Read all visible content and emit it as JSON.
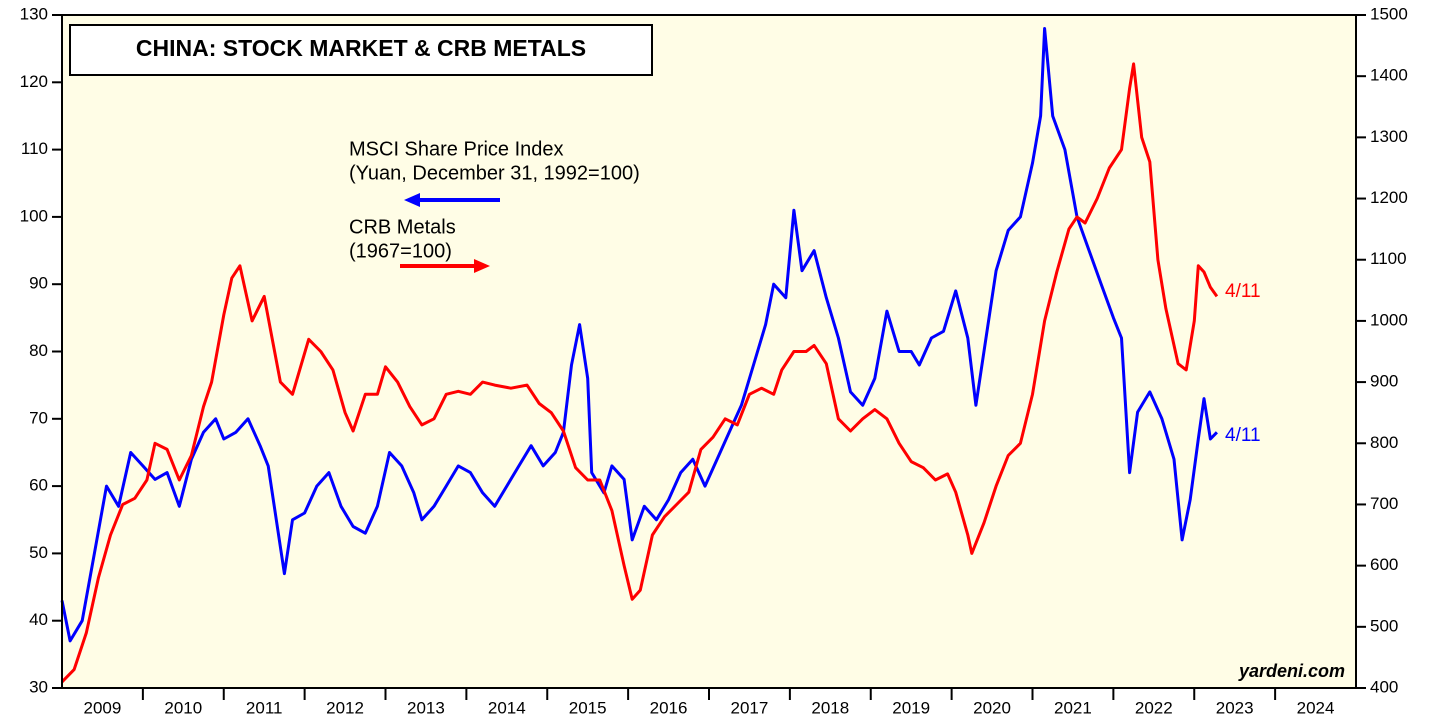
{
  "chart_data": {
    "type": "line",
    "title": "CHINA: STOCK MARKET & CRB METALS",
    "annotations": {
      "msci_line1": "MSCI Share Price Index",
      "msci_line2": "(Yuan, December 31, 1992=100)",
      "crb_line1": "CRB Metals",
      "crb_line2": "(1967=100)",
      "red_end": "4/11",
      "blue_end": "4/11",
      "source": "yardeni.com"
    },
    "xlim": [
      2009,
      2025
    ],
    "xtick_marks": [
      2010,
      2011,
      2012,
      2013,
      2014,
      2015,
      2016,
      2017,
      2018,
      2019,
      2020,
      2021,
      2022,
      2023,
      2024
    ],
    "xticks": [
      {
        "value": 2009.5,
        "label": "2009"
      },
      {
        "value": 2010.5,
        "label": "2010"
      },
      {
        "value": 2011.5,
        "label": "2011"
      },
      {
        "value": 2012.5,
        "label": "2012"
      },
      {
        "value": 2013.5,
        "label": "2013"
      },
      {
        "value": 2014.5,
        "label": "2014"
      },
      {
        "value": 2015.5,
        "label": "2015"
      },
      {
        "value": 2016.5,
        "label": "2016"
      },
      {
        "value": 2017.5,
        "label": "2017"
      },
      {
        "value": 2018.5,
        "label": "2018"
      },
      {
        "value": 2019.5,
        "label": "2019"
      },
      {
        "value": 2020.5,
        "label": "2020"
      },
      {
        "value": 2021.5,
        "label": "2021"
      },
      {
        "value": 2022.5,
        "label": "2022"
      },
      {
        "value": 2023.5,
        "label": "2023"
      },
      {
        "value": 2024.5,
        "label": "2024"
      }
    ],
    "ylim": [
      30,
      130
    ],
    "yticks": [
      30,
      40,
      50,
      60,
      70,
      80,
      90,
      100,
      110,
      120,
      130
    ],
    "y2lim": [
      400,
      1500
    ],
    "y2ticks": [
      400,
      500,
      600,
      700,
      800,
      900,
      1000,
      1100,
      1200,
      1300,
      1400,
      1500
    ],
    "background": "#fffde6",
    "series": [
      {
        "name": "MSCI Share Price Index",
        "color": "#0000ff",
        "axis": "y",
        "x": [
          2009.0,
          2009.1,
          2009.25,
          2009.4,
          2009.55,
          2009.7,
          2009.85,
          2010.0,
          2010.15,
          2010.3,
          2010.45,
          2010.6,
          2010.75,
          2010.9,
          2011.0,
          2011.15,
          2011.3,
          2011.45,
          2011.55,
          2011.65,
          2011.75,
          2011.85,
          2012.0,
          2012.15,
          2012.3,
          2012.45,
          2012.6,
          2012.75,
          2012.9,
          2013.05,
          2013.2,
          2013.35,
          2013.45,
          2013.6,
          2013.75,
          2013.9,
          2014.05,
          2014.2,
          2014.35,
          2014.5,
          2014.65,
          2014.8,
          2014.95,
          2015.1,
          2015.2,
          2015.3,
          2015.4,
          2015.5,
          2015.55,
          2015.7,
          2015.8,
          2015.95,
          2016.05,
          2016.2,
          2016.35,
          2016.5,
          2016.65,
          2016.8,
          2016.95,
          2017.1,
          2017.25,
          2017.4,
          2017.55,
          2017.7,
          2017.8,
          2017.95,
          2018.05,
          2018.15,
          2018.3,
          2018.45,
          2018.6,
          2018.75,
          2018.9,
          2019.05,
          2019.2,
          2019.35,
          2019.5,
          2019.6,
          2019.75,
          2019.9,
          2020.05,
          2020.2,
          2020.3,
          2020.45,
          2020.55,
          2020.7,
          2020.85,
          2021.0,
          2021.1,
          2021.15,
          2021.25,
          2021.4,
          2021.55,
          2021.7,
          2021.85,
          2022.0,
          2022.1,
          2022.2,
          2022.3,
          2022.45,
          2022.6,
          2022.75,
          2022.85,
          2022.95,
          2023.05,
          2023.12,
          2023.2,
          2023.28
        ],
        "values": [
          43,
          37,
          40,
          50,
          60,
          57,
          65,
          63,
          61,
          62,
          57,
          64,
          68,
          70,
          67,
          68,
          70,
          66,
          63,
          55,
          47,
          55,
          56,
          60,
          62,
          57,
          54,
          53,
          57,
          65,
          63,
          59,
          55,
          57,
          60,
          63,
          62,
          59,
          57,
          60,
          63,
          66,
          63,
          65,
          68,
          78,
          84,
          76,
          62,
          59,
          63,
          61,
          52,
          57,
          55,
          58,
          62,
          64,
          60,
          64,
          68,
          72,
          78,
          84,
          90,
          88,
          101,
          92,
          95,
          88,
          82,
          74,
          72,
          76,
          86,
          80,
          80,
          78,
          82,
          83,
          89,
          82,
          72,
          84,
          92,
          98,
          100,
          108,
          115,
          128,
          115,
          110,
          100,
          95,
          90,
          85,
          82,
          62,
          71,
          74,
          70,
          64,
          52,
          58,
          67,
          73,
          67,
          68
        ]
      },
      {
        "name": "CRB Metals",
        "color": "#ff0000",
        "axis": "y2",
        "x": [
          2009.0,
          2009.15,
          2009.3,
          2009.45,
          2009.6,
          2009.75,
          2009.9,
          2010.05,
          2010.15,
          2010.3,
          2010.45,
          2010.6,
          2010.75,
          2010.85,
          2011.0,
          2011.1,
          2011.2,
          2011.35,
          2011.5,
          2011.6,
          2011.7,
          2011.85,
          2012.05,
          2012.2,
          2012.35,
          2012.5,
          2012.6,
          2012.75,
          2012.9,
          2013.0,
          2013.15,
          2013.3,
          2013.45,
          2013.6,
          2013.75,
          2013.9,
          2014.05,
          2014.2,
          2014.35,
          2014.55,
          2014.75,
          2014.9,
          2015.05,
          2015.2,
          2015.35,
          2015.5,
          2015.65,
          2015.8,
          2015.95,
          2016.05,
          2016.15,
          2016.3,
          2016.45,
          2016.6,
          2016.75,
          2016.9,
          2017.05,
          2017.2,
          2017.35,
          2017.5,
          2017.65,
          2017.8,
          2017.9,
          2018.05,
          2018.2,
          2018.3,
          2018.45,
          2018.6,
          2018.75,
          2018.9,
          2019.05,
          2019.2,
          2019.35,
          2019.5,
          2019.65,
          2019.8,
          2019.95,
          2020.05,
          2020.2,
          2020.25,
          2020.4,
          2020.55,
          2020.7,
          2020.85,
          2021.0,
          2021.15,
          2021.3,
          2021.45,
          2021.55,
          2021.65,
          2021.8,
          2021.95,
          2022.1,
          2022.2,
          2022.25,
          2022.35,
          2022.45,
          2022.55,
          2022.65,
          2022.8,
          2022.9,
          2023.0,
          2023.05,
          2023.12,
          2023.2,
          2023.28
        ],
        "values": [
          410,
          430,
          490,
          580,
          650,
          700,
          710,
          740,
          800,
          790,
          740,
          780,
          860,
          900,
          1010,
          1070,
          1090,
          1000,
          1040,
          970,
          900,
          880,
          970,
          950,
          920,
          850,
          820,
          880,
          880,
          925,
          900,
          860,
          830,
          840,
          880,
          885,
          880,
          900,
          895,
          890,
          895,
          865,
          850,
          820,
          760,
          740,
          740,
          690,
          600,
          545,
          560,
          650,
          680,
          700,
          720,
          790,
          810,
          840,
          830,
          880,
          890,
          880,
          920,
          950,
          950,
          960,
          930,
          840,
          820,
          840,
          855,
          840,
          800,
          770,
          760,
          740,
          750,
          720,
          650,
          620,
          670,
          730,
          780,
          800,
          880,
          1000,
          1080,
          1150,
          1170,
          1160,
          1200,
          1250,
          1280,
          1380,
          1420,
          1300,
          1260,
          1100,
          1020,
          930,
          920,
          1000,
          1090,
          1080,
          1055,
          1040
        ]
      }
    ]
  }
}
